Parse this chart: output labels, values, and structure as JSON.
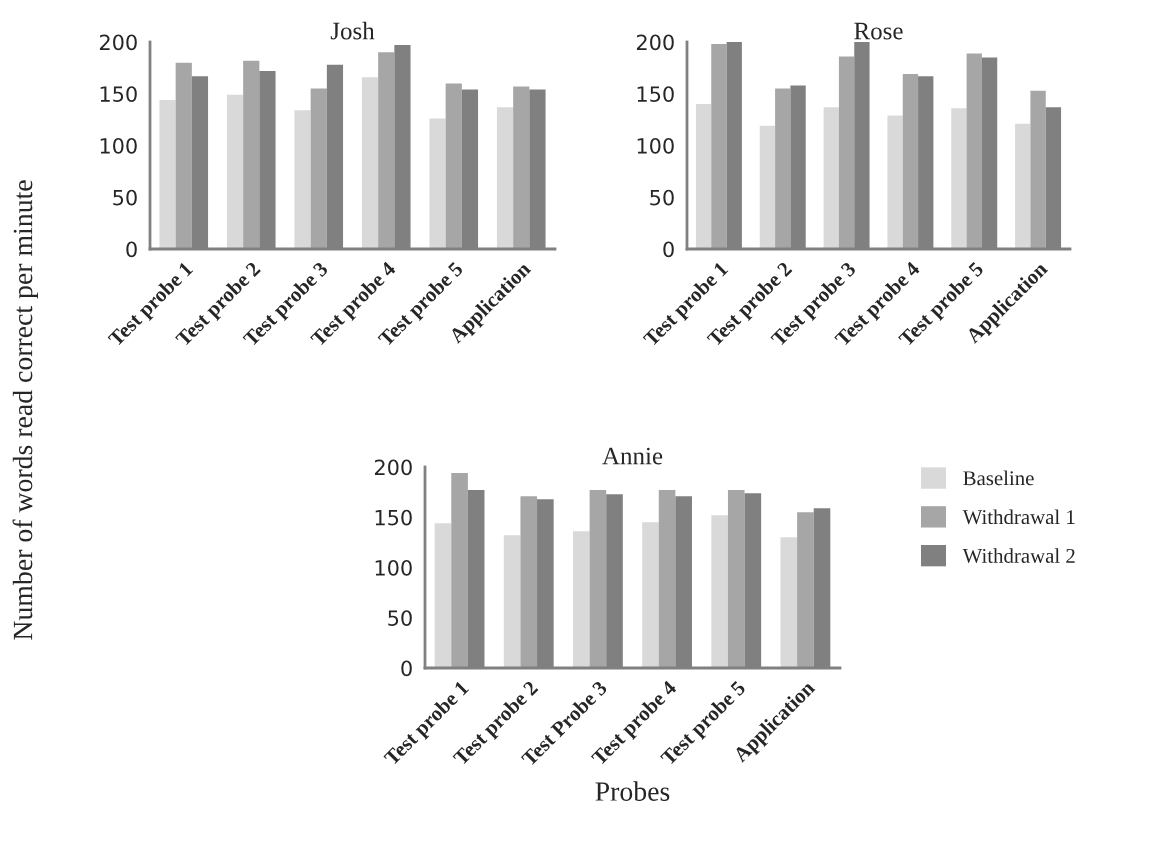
{
  "chart_data": [
    {
      "type": "bar",
      "title": "Josh",
      "ylabel": "Number of words read correct per minute",
      "categories": [
        "Test probe 1",
        "Test probe 2",
        "Test probe 3",
        "Test probe 4",
        "Test probe 5",
        "Application"
      ],
      "ylim": [
        0,
        200
      ],
      "yticks": [
        0,
        50,
        100,
        150,
        200
      ],
      "grid": false,
      "series": [
        {
          "color": "#d9d9d9",
          "values": [
            144,
            149,
            134,
            166,
            126,
            137
          ]
        },
        {
          "color": "#a6a6a6",
          "values": [
            180,
            182,
            155,
            190,
            160,
            157
          ]
        },
        {
          "color": "#808080",
          "values": [
            167,
            172,
            178,
            197,
            154,
            154
          ]
        }
      ]
    },
    {
      "type": "bar",
      "title": "Rose",
      "categories": [
        "Test probe 1",
        "Test probe 2",
        "Test probe 3",
        "Test probe 4",
        "Test probe 5",
        "Application"
      ],
      "ylim": [
        0,
        200
      ],
      "yticks": [
        0,
        50,
        100,
        150,
        200
      ],
      "grid": false,
      "series": [
        {
          "color": "#d9d9d9",
          "values": [
            140,
            119,
            137,
            129,
            136,
            121
          ]
        },
        {
          "color": "#a6a6a6",
          "values": [
            198,
            155,
            186,
            169,
            189,
            153
          ]
        },
        {
          "color": "#808080",
          "values": [
            200,
            158,
            200,
            167,
            185,
            137
          ]
        }
      ]
    },
    {
      "type": "bar",
      "title": "Annie",
      "xlabel": "Probes",
      "categories": [
        "Test probe 1",
        "Test probe 2",
        "Test Probe 3",
        "Test probe 4",
        "Test probe 5",
        "Application"
      ],
      "ylim": [
        0,
        200
      ],
      "yticks": [
        0,
        50,
        100,
        150,
        200
      ],
      "grid": false,
      "legend": "right",
      "series": [
        {
          "name": "Baseline",
          "color": "#d9d9d9",
          "values": [
            144,
            132,
            136,
            145,
            152,
            130
          ]
        },
        {
          "name": "Withdrawal 1",
          "color": "#a6a6a6",
          "values": [
            194,
            171,
            177,
            177,
            177,
            155
          ]
        },
        {
          "name": "Withdrawal 2",
          "color": "#808080",
          "values": [
            177,
            168,
            173,
            171,
            174,
            159
          ]
        }
      ]
    }
  ]
}
